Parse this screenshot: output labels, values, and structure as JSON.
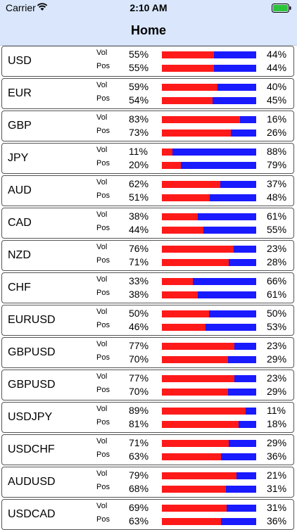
{
  "status_bar": {
    "carrier": "Carrier",
    "time": "2:10 AM"
  },
  "nav": {
    "title": "Home"
  },
  "labels": {
    "vol": "Vol",
    "pos": "Pos"
  },
  "colors": {
    "long": "#ff1a1a",
    "short": "#1a1aff",
    "header": "#d9e6fb"
  },
  "rows": [
    {
      "pair": "USD",
      "vol": 55,
      "vol_short": 44,
      "pos": 55,
      "pos_short": 44
    },
    {
      "pair": "EUR",
      "vol": 59,
      "vol_short": 40,
      "pos": 54,
      "pos_short": 45
    },
    {
      "pair": "GBP",
      "vol": 83,
      "vol_short": 16,
      "pos": 73,
      "pos_short": 26
    },
    {
      "pair": "JPY",
      "vol": 11,
      "vol_short": 88,
      "pos": 20,
      "pos_short": 79
    },
    {
      "pair": "AUD",
      "vol": 62,
      "vol_short": 37,
      "pos": 51,
      "pos_short": 48
    },
    {
      "pair": "CAD",
      "vol": 38,
      "vol_short": 61,
      "pos": 44,
      "pos_short": 55
    },
    {
      "pair": "NZD",
      "vol": 76,
      "vol_short": 23,
      "pos": 71,
      "pos_short": 28
    },
    {
      "pair": "CHF",
      "vol": 33,
      "vol_short": 66,
      "pos": 38,
      "pos_short": 61
    },
    {
      "pair": "EURUSD",
      "vol": 50,
      "vol_short": 50,
      "pos": 46,
      "pos_short": 53
    },
    {
      "pair": "GBPUSD",
      "vol": 77,
      "vol_short": 23,
      "pos": 70,
      "pos_short": 29
    },
    {
      "pair": "GBPUSD",
      "vol": 77,
      "vol_short": 23,
      "pos": 70,
      "pos_short": 29
    },
    {
      "pair": "USDJPY",
      "vol": 89,
      "vol_short": 11,
      "pos": 81,
      "pos_short": 18
    },
    {
      "pair": "USDCHF",
      "vol": 71,
      "vol_short": 29,
      "pos": 63,
      "pos_short": 36
    },
    {
      "pair": "AUDUSD",
      "vol": 79,
      "vol_short": 21,
      "pos": 68,
      "pos_short": 31
    },
    {
      "pair": "USDCAD",
      "vol": 69,
      "vol_short": 31,
      "pos": 63,
      "pos_short": 36
    }
  ]
}
